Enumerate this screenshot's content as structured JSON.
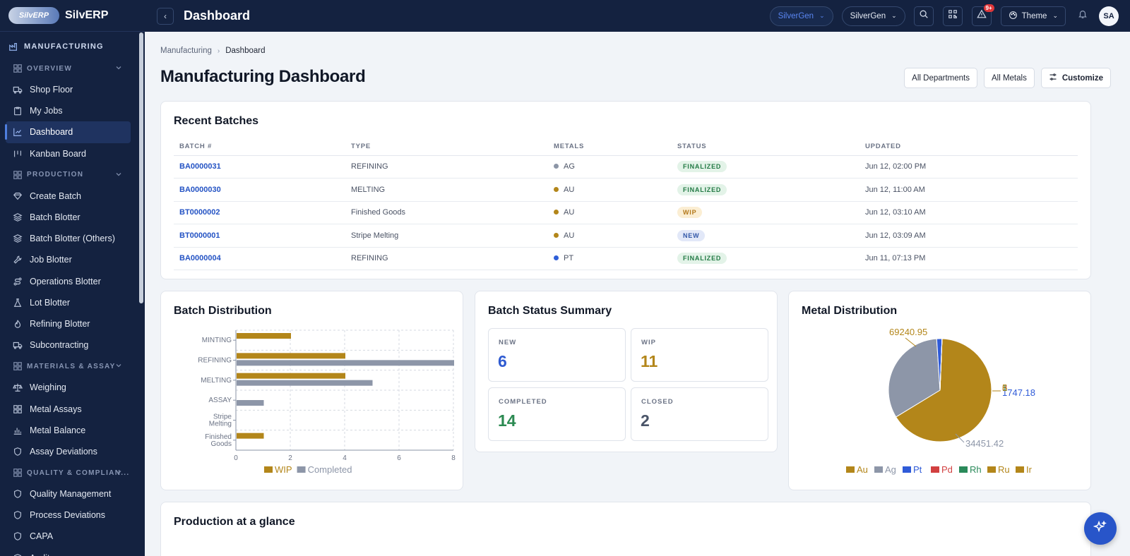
{
  "brand": {
    "logo_text": "SilvERP",
    "name": "SilvERP"
  },
  "sidebar": {
    "module": "MANUFACTURING",
    "sections": [
      {
        "label": "OVERVIEW",
        "items": [
          {
            "label": "Shop Floor",
            "icon": "truck-icon"
          },
          {
            "label": "My Jobs",
            "icon": "clipboard-icon"
          },
          {
            "label": "Dashboard",
            "icon": "chart-icon",
            "active": true
          },
          {
            "label": "Kanban Board",
            "icon": "kanban-icon"
          }
        ]
      },
      {
        "label": "PRODUCTION",
        "items": [
          {
            "label": "Create Batch",
            "icon": "diamond-icon"
          },
          {
            "label": "Batch Blotter",
            "icon": "layers-icon"
          },
          {
            "label": "Batch Blotter (Others)",
            "icon": "layers-icon"
          },
          {
            "label": "Job Blotter",
            "icon": "wrench-icon"
          },
          {
            "label": "Operations Blotter",
            "icon": "route-icon"
          },
          {
            "label": "Lot Blotter",
            "icon": "flask-icon"
          },
          {
            "label": "Refining Blotter",
            "icon": "flame-icon"
          },
          {
            "label": "Subcontracting",
            "icon": "truck-icon"
          }
        ]
      },
      {
        "label": "MATERIALS & ASSAY",
        "items": [
          {
            "label": "Weighing",
            "icon": "scale-icon"
          },
          {
            "label": "Metal Assays",
            "icon": "grid-icon"
          },
          {
            "label": "Metal Balance",
            "icon": "bar-chart-icon"
          },
          {
            "label": "Assay Deviations",
            "icon": "shield-icon"
          }
        ]
      },
      {
        "label": "QUALITY & COMPLIAN...",
        "items": [
          {
            "label": "Quality Management",
            "icon": "shield-icon"
          },
          {
            "label": "Process Deviations",
            "icon": "shield-icon"
          },
          {
            "label": "CAPA",
            "icon": "shield-icon"
          },
          {
            "label": "Audits",
            "icon": "shield-icon"
          }
        ]
      }
    ]
  },
  "header": {
    "title": "Dashboard",
    "company_pill": "SilverGen",
    "entity_select": "SilverGen",
    "notif_badge": "9+",
    "theme_label": "Theme",
    "avatar": "SA"
  },
  "breadcrumb": {
    "parent": "Manufacturing",
    "current": "Dashboard"
  },
  "page": {
    "title": "Manufacturing Dashboard",
    "filter_departments": "All Departments",
    "filter_metals": "All Metals",
    "customize": "Customize"
  },
  "recent_batches": {
    "title": "Recent Batches",
    "columns": [
      "BATCH #",
      "TYPE",
      "METALS",
      "STATUS",
      "UPDATED"
    ],
    "rows": [
      {
        "batch": "BA0000031",
        "type": "REFINING",
        "metal": "AG",
        "metal_color": "#8c95a6",
        "status": "FINALIZED",
        "status_kind": "finalized",
        "updated": "Jun 12, 02:00 PM"
      },
      {
        "batch": "BA0000030",
        "type": "MELTING",
        "metal": "AU",
        "metal_color": "#b3861a",
        "status": "FINALIZED",
        "status_kind": "finalized",
        "updated": "Jun 12, 11:00 AM"
      },
      {
        "batch": "BT0000002",
        "type": "Finished Goods",
        "metal": "AU",
        "metal_color": "#b3861a",
        "status": "WIP",
        "status_kind": "wip",
        "updated": "Jun 12, 03:10 AM"
      },
      {
        "batch": "BT0000001",
        "type": "Stripe Melting",
        "metal": "AU",
        "metal_color": "#b3861a",
        "status": "NEW",
        "status_kind": "new",
        "updated": "Jun 12, 03:09 AM"
      },
      {
        "batch": "BA0000004",
        "type": "REFINING",
        "metal": "PT",
        "metal_color": "#2f5fd8",
        "status": "FINALIZED",
        "status_kind": "finalized",
        "updated": "Jun 11, 07:13 PM"
      }
    ]
  },
  "batch_distribution_title": "Batch Distribution",
  "status_summary": {
    "title": "Batch Status Summary",
    "items": [
      {
        "label": "NEW",
        "value": "6",
        "color": "#2f5bd1"
      },
      {
        "label": "WIP",
        "value": "11",
        "color": "#b3861a"
      },
      {
        "label": "COMPLETED",
        "value": "14",
        "color": "#2c8a52"
      },
      {
        "label": "CLOSED",
        "value": "2",
        "color": "#4a5468"
      }
    ]
  },
  "metal_distribution_title": "Metal Distribution",
  "production_title": "Production at a glance",
  "chart_data": [
    {
      "type": "bar",
      "orientation": "horizontal",
      "categories": [
        "MINTING",
        "REFINING",
        "MELTING",
        "ASSAY",
        "Stripe Melting",
        "Finished Goods"
      ],
      "series": [
        {
          "name": "WIP",
          "color": "#b3861a",
          "values": [
            2,
            4,
            4,
            0,
            0,
            1
          ]
        },
        {
          "name": "Completed",
          "color": "#8d96a8",
          "values": [
            0,
            8,
            5,
            1,
            0,
            0
          ]
        }
      ],
      "xlim": [
        0,
        8
      ],
      "xticks": [
        0,
        2,
        4,
        6,
        8
      ],
      "grid": true,
      "legend": "bottom"
    },
    {
      "type": "pie",
      "labels": [
        "Au",
        "Ag",
        "Pt",
        "Pd",
        "Rh",
        "Ru",
        "Ir"
      ],
      "colors": [
        "#b3861a",
        "#8d96a8",
        "#2f5bd8",
        "#d24040",
        "#2a8a5a",
        "#b3861a",
        "#b3861a"
      ],
      "values": [
        69240.95,
        34451.42,
        1747.18,
        3.0,
        1.0,
        6.0,
        5.0
      ],
      "data_labels": [
        "69240.95",
        "34451.42",
        "1747.18",
        "3",
        "1",
        "6",
        "5"
      ],
      "legend": "bottom"
    }
  ]
}
